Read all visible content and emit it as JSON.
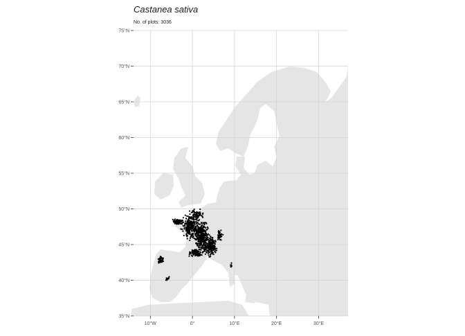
{
  "map": {
    "title": "Castanea sativa",
    "subtitle": "No. of plots: 3036",
    "colors": {
      "land": "#e5e5e5",
      "grid": "#d0d0d0",
      "points": "#000000",
      "axis_text": "#4d4d4d"
    },
    "lat_ticks": [
      {
        "value": 35,
        "label": "35°N"
      },
      {
        "value": 40,
        "label": "40°N"
      },
      {
        "value": 45,
        "label": "45°N"
      },
      {
        "value": 50,
        "label": "50°N"
      },
      {
        "value": 55,
        "label": "55°N"
      },
      {
        "value": 60,
        "label": "60°N"
      },
      {
        "value": 65,
        "label": "65°N"
      },
      {
        "value": 70,
        "label": "70°N"
      },
      {
        "value": 75,
        "label": "75°N"
      }
    ],
    "lon_ticks": [
      {
        "value": -10,
        "label": "10°W"
      },
      {
        "value": 0,
        "label": "0°"
      },
      {
        "value": 10,
        "label": "10°E"
      },
      {
        "value": 20,
        "label": "20°E"
      },
      {
        "value": 30,
        "label": "30°E"
      }
    ],
    "lon_range": [
      -14,
      37
    ],
    "lat_range": [
      35,
      75
    ],
    "occurrence_clusters": [
      {
        "lon": -0.5,
        "lat": 47.5,
        "spread_lon": 2.6,
        "spread_lat": 2.0,
        "n": 260
      },
      {
        "lon": 2.2,
        "lat": 46.0,
        "spread_lon": 2.2,
        "spread_lat": 2.8,
        "n": 320
      },
      {
        "lon": 4.3,
        "lat": 44.8,
        "spread_lon": 1.8,
        "spread_lat": 1.8,
        "n": 200
      },
      {
        "lon": -3.5,
        "lat": 48.2,
        "spread_lon": 1.4,
        "spread_lat": 0.5,
        "n": 90
      },
      {
        "lon": 1.0,
        "lat": 49.2,
        "spread_lon": 2.4,
        "spread_lat": 1.0,
        "n": 80
      },
      {
        "lon": 0.8,
        "lat": 43.8,
        "spread_lon": 2.0,
        "spread_lat": 0.6,
        "n": 100
      },
      {
        "lon": -7.6,
        "lat": 42.9,
        "spread_lon": 0.8,
        "spread_lat": 0.6,
        "n": 70
      },
      {
        "lon": -6.0,
        "lat": 40.3,
        "spread_lon": 0.8,
        "spread_lat": 0.5,
        "n": 10
      },
      {
        "lon": 9.2,
        "lat": 42.2,
        "spread_lon": 0.2,
        "spread_lat": 0.5,
        "n": 14
      },
      {
        "lon": 6.5,
        "lat": 46.3,
        "spread_lon": 0.9,
        "spread_lat": 1.2,
        "n": 40
      }
    ]
  }
}
